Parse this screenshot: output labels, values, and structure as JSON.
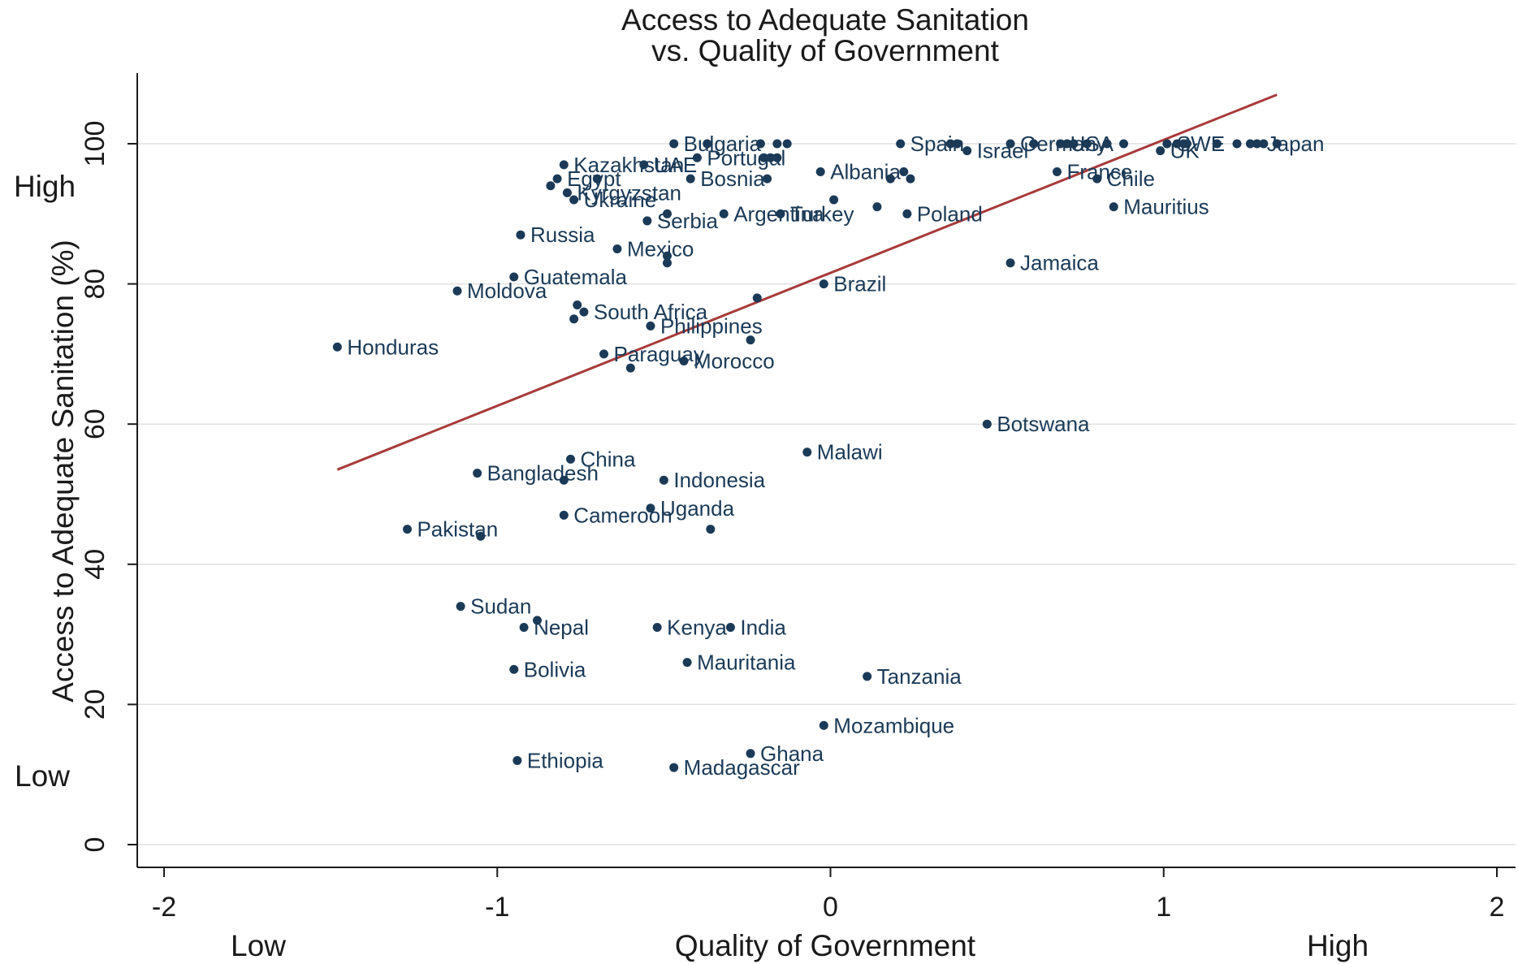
{
  "chart_data": {
    "type": "scatter",
    "title": [
      "Access to Adequate Sanitation",
      "vs. Quality of Government"
    ],
    "xlabel": "Quality of Government",
    "ylabel": "Access to Adequate Sanitation (%)",
    "x_extremes": {
      "low": "Low",
      "high": "High"
    },
    "y_extremes": {
      "low": "Low",
      "high": "High"
    },
    "xlim": [
      -2,
      2
    ],
    "ylim": [
      0,
      100
    ],
    "xticks": [
      "-2",
      "-1",
      "0",
      "1",
      "2"
    ],
    "yticks": [
      "0",
      "20",
      "40",
      "60",
      "80",
      "100"
    ],
    "grid": "horizontal",
    "colors": {
      "point": "#1b3a57",
      "fit_line": "#a83a3a",
      "grid": "#e1e1e1",
      "axis": "#1a1a1a"
    },
    "fit_line": {
      "x": [
        -1.48,
        1.34
      ],
      "y": [
        53.5,
        107
      ]
    },
    "points": [
      {
        "x": -1.48,
        "y": 71,
        "label": "Honduras"
      },
      {
        "x": -1.27,
        "y": 45,
        "label": "Pakistan"
      },
      {
        "x": -1.12,
        "y": 79,
        "label": "Moldova"
      },
      {
        "x": -1.11,
        "y": 34,
        "label": "Sudan"
      },
      {
        "x": -1.06,
        "y": 53,
        "label": "Bangladesh"
      },
      {
        "x": -1.05,
        "y": 44,
        "label": ""
      },
      {
        "x": -0.95,
        "y": 25,
        "label": "Bolivia"
      },
      {
        "x": -0.95,
        "y": 81,
        "label": "Guatemala"
      },
      {
        "x": -0.94,
        "y": 12,
        "label": "Ethiopia"
      },
      {
        "x": -0.93,
        "y": 87,
        "label": "Russia"
      },
      {
        "x": -0.92,
        "y": 31,
        "label": "Nepal"
      },
      {
        "x": -0.88,
        "y": 32,
        "label": ""
      },
      {
        "x": -0.84,
        "y": 94,
        "label": ""
      },
      {
        "x": -0.82,
        "y": 95,
        "label": "Egypt"
      },
      {
        "x": -0.8,
        "y": 97,
        "label": "Kazakhstan"
      },
      {
        "x": -0.8,
        "y": 47,
        "label": "Cameroon"
      },
      {
        "x": -0.8,
        "y": 52,
        "label": ""
      },
      {
        "x": -0.79,
        "y": 93,
        "label": "Kyrgyzstan"
      },
      {
        "x": -0.78,
        "y": 55,
        "label": "China"
      },
      {
        "x": -0.77,
        "y": 92,
        "label": "Ukraine"
      },
      {
        "x": -0.77,
        "y": 75,
        "label": ""
      },
      {
        "x": -0.76,
        "y": 77,
        "label": ""
      },
      {
        "x": -0.74,
        "y": 76,
        "label": "South Africa"
      },
      {
        "x": -0.7,
        "y": 95,
        "label": ""
      },
      {
        "x": -0.68,
        "y": 70,
        "label": "Paraguay"
      },
      {
        "x": -0.64,
        "y": 85,
        "label": "Mexico"
      },
      {
        "x": -0.6,
        "y": 68,
        "label": ""
      },
      {
        "x": -0.56,
        "y": 97,
        "label": "UAE"
      },
      {
        "x": -0.55,
        "y": 89,
        "label": "Serbia"
      },
      {
        "x": -0.54,
        "y": 48,
        "label": "Uganda"
      },
      {
        "x": -0.54,
        "y": 74,
        "label": "Philippines"
      },
      {
        "x": -0.52,
        "y": 31,
        "label": "Kenya"
      },
      {
        "x": -0.5,
        "y": 52,
        "label": "Indonesia"
      },
      {
        "x": -0.49,
        "y": 90,
        "label": ""
      },
      {
        "x": -0.49,
        "y": 83,
        "label": ""
      },
      {
        "x": -0.49,
        "y": 84,
        "label": ""
      },
      {
        "x": -0.47,
        "y": 11,
        "label": "Madagascar"
      },
      {
        "x": -0.47,
        "y": 100,
        "label": "Bulgaria"
      },
      {
        "x": -0.44,
        "y": 69,
        "label": "Morocco"
      },
      {
        "x": -0.43,
        "y": 26,
        "label": "Mauritania"
      },
      {
        "x": -0.42,
        "y": 95,
        "label": "Bosnia"
      },
      {
        "x": -0.4,
        "y": 98,
        "label": "Portugal"
      },
      {
        "x": -0.37,
        "y": 100,
        "label": ""
      },
      {
        "x": -0.36,
        "y": 45,
        "label": ""
      },
      {
        "x": -0.32,
        "y": 90,
        "label": "Argentina"
      },
      {
        "x": -0.3,
        "y": 31,
        "label": "India"
      },
      {
        "x": -0.24,
        "y": 72,
        "label": ""
      },
      {
        "x": -0.24,
        "y": 13,
        "label": "Ghana"
      },
      {
        "x": -0.22,
        "y": 78,
        "label": ""
      },
      {
        "x": -0.21,
        "y": 100,
        "label": ""
      },
      {
        "x": -0.2,
        "y": 98,
        "label": ""
      },
      {
        "x": -0.19,
        "y": 95,
        "label": ""
      },
      {
        "x": -0.18,
        "y": 98,
        "label": ""
      },
      {
        "x": -0.16,
        "y": 100,
        "label": ""
      },
      {
        "x": -0.16,
        "y": 98,
        "label": ""
      },
      {
        "x": -0.15,
        "y": 90,
        "label": "Turkey"
      },
      {
        "x": -0.13,
        "y": 100,
        "label": ""
      },
      {
        "x": -0.07,
        "y": 56,
        "label": "Malawi"
      },
      {
        "x": -0.03,
        "y": 96,
        "label": "Albania"
      },
      {
        "x": -0.02,
        "y": 80,
        "label": "Brazil"
      },
      {
        "x": -0.02,
        "y": 17,
        "label": "Mozambique"
      },
      {
        "x": 0.01,
        "y": 92,
        "label": ""
      },
      {
        "x": 0.11,
        "y": 24,
        "label": "Tanzania"
      },
      {
        "x": 0.14,
        "y": 91,
        "label": ""
      },
      {
        "x": 0.18,
        "y": 95,
        "label": ""
      },
      {
        "x": 0.21,
        "y": 100,
        "label": "Spain"
      },
      {
        "x": 0.22,
        "y": 96,
        "label": ""
      },
      {
        "x": 0.23,
        "y": 90,
        "label": "Poland"
      },
      {
        "x": 0.24,
        "y": 95,
        "label": ""
      },
      {
        "x": 0.36,
        "y": 100,
        "label": ""
      },
      {
        "x": 0.38,
        "y": 100,
        "label": ""
      },
      {
        "x": 0.41,
        "y": 99,
        "label": "Israel"
      },
      {
        "x": 0.47,
        "y": 60,
        "label": "Botswana"
      },
      {
        "x": 0.54,
        "y": 100,
        "label": "Germany"
      },
      {
        "x": 0.54,
        "y": 83,
        "label": "Jamaica"
      },
      {
        "x": 0.61,
        "y": 100,
        "label": ""
      },
      {
        "x": 0.68,
        "y": 96,
        "label": "France"
      },
      {
        "x": 0.69,
        "y": 100,
        "label": "USA"
      },
      {
        "x": 0.71,
        "y": 100,
        "label": ""
      },
      {
        "x": 0.73,
        "y": 100,
        "label": ""
      },
      {
        "x": 0.77,
        "y": 100,
        "label": ""
      },
      {
        "x": 0.8,
        "y": 95,
        "label": "Chile"
      },
      {
        "x": 0.83,
        "y": 100,
        "label": ""
      },
      {
        "x": 0.85,
        "y": 91,
        "label": "Mauritius"
      },
      {
        "x": 0.88,
        "y": 100,
        "label": ""
      },
      {
        "x": 0.99,
        "y": 99,
        "label": "UK"
      },
      {
        "x": 1.01,
        "y": 100,
        "label": "SWE"
      },
      {
        "x": 1.04,
        "y": 100,
        "label": ""
      },
      {
        "x": 1.06,
        "y": 100,
        "label": ""
      },
      {
        "x": 1.07,
        "y": 100,
        "label": ""
      },
      {
        "x": 1.16,
        "y": 100,
        "label": ""
      },
      {
        "x": 1.22,
        "y": 100,
        "label": ""
      },
      {
        "x": 1.26,
        "y": 100,
        "label": ""
      },
      {
        "x": 1.28,
        "y": 100,
        "label": "Japan"
      },
      {
        "x": 1.3,
        "y": 100,
        "label": ""
      },
      {
        "x": 1.34,
        "y": 100,
        "label": ""
      }
    ]
  }
}
